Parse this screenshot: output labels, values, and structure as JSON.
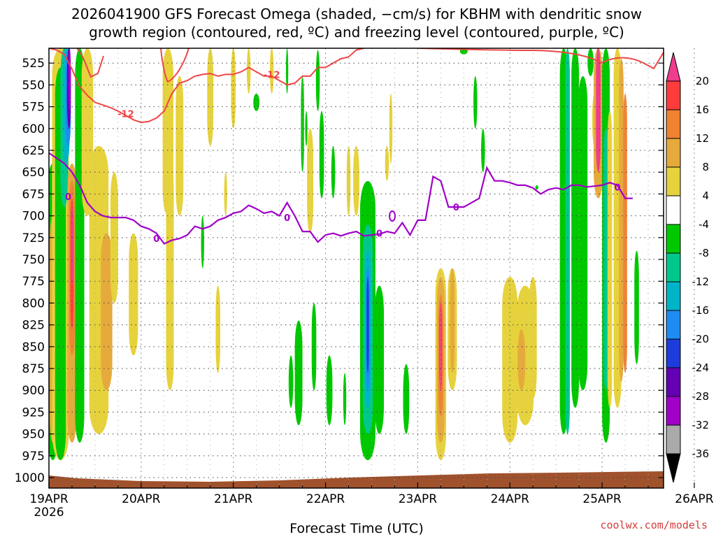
{
  "chart_data": {
    "type": "heatmap",
    "title_line1": "2026041900 GFS Forecast Omega (shaded, −cm/s) for KBHM with dendritic snow",
    "title_line2": "growth region (contoured, red, ºC) and freezing level (contoured, purple, ºC)",
    "xlabel": "Forecast Time (UTC)",
    "credit": "coolwx.com/models",
    "year_label": "2026",
    "x_ticks": [
      "19APR",
      "20APR",
      "21APR",
      "22APR",
      "23APR",
      "24APR",
      "25APR",
      "26APR"
    ],
    "xlim_hours": [
      0,
      160
    ],
    "y_ticks": [
      "525",
      "550",
      "575",
      "600",
      "625",
      "650",
      "675",
      "700",
      "725",
      "750",
      "775",
      "800",
      "825",
      "850",
      "875",
      "900",
      "925",
      "950",
      "975",
      "1000"
    ],
    "ylim_hpa": [
      508,
      1012
    ],
    "colorbar": {
      "labels": [
        "20",
        "16",
        "12",
        "8",
        "4",
        "-4",
        "-8",
        "-12",
        "-16",
        "-20",
        "-24",
        "-28",
        "-32",
        "-36"
      ],
      "colors": [
        "#f03c8c",
        "#ff3c3c",
        "#f08232",
        "#e6aa3c",
        "#e6d23c",
        "#ffffff",
        "#00c800",
        "#00c88c",
        "#00b4c8",
        "#1e8cf0",
        "#1e3cdc",
        "#6400b4",
        "#a000c8",
        "#aaaaaa",
        "#000000"
      ]
    },
    "omega_colors": {
      "p4": "#e6d23c",
      "p8": "#e6aa3c",
      "p12": "#f08232",
      "p16": "#ff3c3c",
      "p20": "#f03c8c",
      "n4": "#00c800",
      "n8": "#00c88c",
      "n12": "#00b4c8",
      "n16": "#1e8cf0",
      "n20": "#1e3cdc",
      "n24": "#6400b4",
      "n28": "#a000c8"
    },
    "contours": {
      "dgz_label": "-12",
      "dgz_color": "#f04646",
      "freezing_label": "0",
      "freezing_color": "#a000c8",
      "dgz_line": [
        [
          0,
          508
        ],
        [
          2,
          510
        ],
        [
          4,
          515
        ],
        [
          6,
          532
        ],
        [
          8,
          552
        ],
        [
          10,
          562
        ],
        [
          12,
          570
        ],
        [
          14,
          573
        ],
        [
          16,
          576
        ],
        [
          18,
          580
        ],
        [
          20,
          585
        ],
        [
          22,
          590
        ],
        [
          24,
          593
        ],
        [
          26,
          592
        ],
        [
          28,
          588
        ],
        [
          30,
          580
        ],
        [
          32,
          560
        ],
        [
          34,
          548
        ],
        [
          36,
          545
        ],
        [
          38,
          540
        ],
        [
          40,
          538
        ],
        [
          42,
          537
        ],
        [
          44,
          540
        ],
        [
          46,
          538
        ],
        [
          48,
          538
        ],
        [
          50,
          535
        ],
        [
          52,
          530
        ],
        [
          54,
          535
        ],
        [
          56,
          540
        ],
        [
          58,
          540
        ],
        [
          60,
          545
        ],
        [
          62,
          550
        ],
        [
          64,
          548
        ],
        [
          66,
          540
        ],
        [
          68,
          540
        ],
        [
          70,
          530
        ],
        [
          72,
          530
        ],
        [
          74,
          525
        ],
        [
          76,
          520
        ],
        [
          78,
          518
        ],
        [
          80,
          510
        ],
        [
          82,
          508
        ]
      ],
      "freezing_line": [
        [
          0,
          628
        ],
        [
          4,
          640
        ],
        [
          6,
          650
        ],
        [
          8,
          665
        ],
        [
          10,
          685
        ],
        [
          12,
          695
        ],
        [
          14,
          700
        ],
        [
          16,
          702
        ],
        [
          18,
          702
        ],
        [
          20,
          702
        ],
        [
          22,
          705
        ],
        [
          24,
          712
        ],
        [
          26,
          715
        ],
        [
          28,
          720
        ],
        [
          30,
          732
        ],
        [
          32,
          728
        ],
        [
          34,
          726
        ],
        [
          36,
          722
        ],
        [
          38,
          712
        ],
        [
          40,
          715
        ],
        [
          42,
          712
        ],
        [
          44,
          705
        ],
        [
          46,
          702
        ],
        [
          48,
          697
        ],
        [
          50,
          695
        ],
        [
          52,
          688
        ],
        [
          54,
          692
        ],
        [
          56,
          697
        ],
        [
          58,
          695
        ],
        [
          60,
          700
        ],
        [
          62,
          685
        ],
        [
          64,
          700
        ],
        [
          66,
          718
        ],
        [
          68,
          718
        ],
        [
          70,
          730
        ],
        [
          72,
          722
        ],
        [
          74,
          720
        ],
        [
          76,
          723
        ],
        [
          78,
          720
        ],
        [
          80,
          718
        ],
        [
          82,
          723
        ],
        [
          84,
          722
        ],
        [
          86,
          721
        ],
        [
          88,
          718
        ],
        [
          90,
          720
        ],
        [
          92,
          708
        ],
        [
          94,
          722
        ],
        [
          96,
          705
        ],
        [
          98,
          705
        ],
        [
          100,
          655
        ],
        [
          102,
          660
        ],
        [
          104,
          690
        ],
        [
          106,
          690
        ],
        [
          108,
          690
        ],
        [
          110,
          685
        ],
        [
          112,
          680
        ],
        [
          114,
          645
        ],
        [
          116,
          660
        ],
        [
          118,
          660
        ],
        [
          120,
          662
        ],
        [
          122,
          665
        ],
        [
          124,
          665
        ],
        [
          126,
          668
        ],
        [
          128,
          675
        ],
        [
          130,
          670
        ],
        [
          132,
          668
        ],
        [
          134,
          670
        ],
        [
          136,
          665
        ],
        [
          138,
          665
        ],
        [
          140,
          667
        ],
        [
          142,
          666
        ],
        [
          144,
          665
        ],
        [
          146,
          662
        ],
        [
          148,
          665
        ],
        [
          150,
          680
        ],
        [
          152,
          680
        ]
      ]
    }
  }
}
